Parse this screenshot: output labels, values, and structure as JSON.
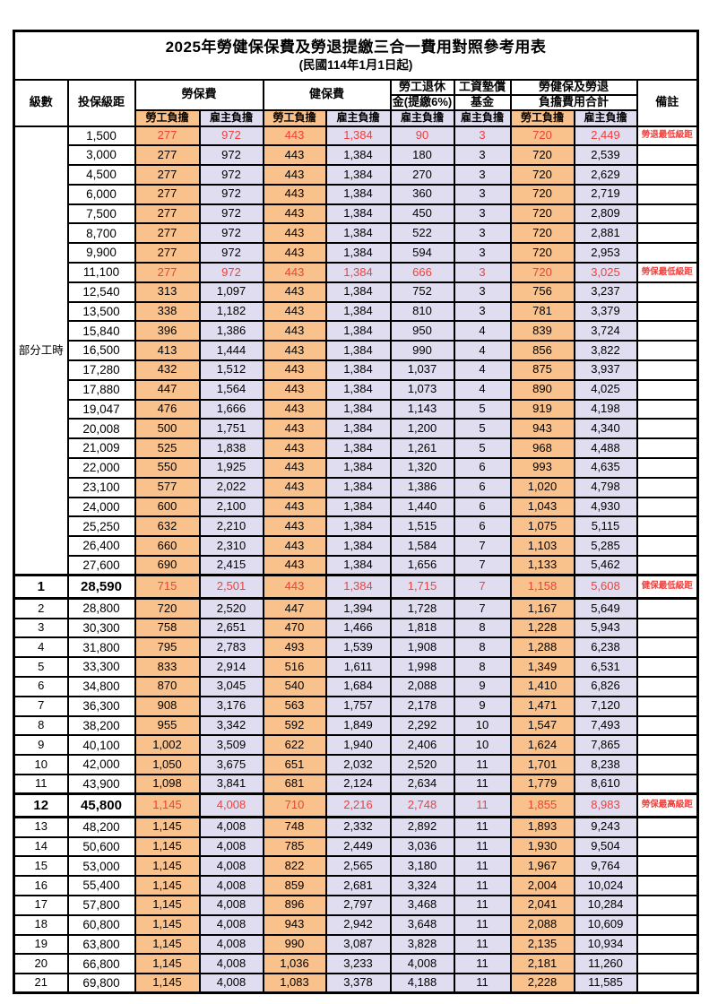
{
  "title": "2025年勞健保保費及勞退提繳三合一費用對照參考用表",
  "subtitle": "(民國114年1月1日起)",
  "colors": {
    "employee_bg": "#f9c18b",
    "employer_bg": "#dfddef",
    "highlight_text": "#f0403c",
    "border": "#000000"
  },
  "header": {
    "level": "級數",
    "bracket": "投保級距",
    "labor_group": "勞保費",
    "health_group": "健保費",
    "pension_line1": "勞工退休",
    "pension_line2": "金(提繳6%)",
    "wage_fund_line1": "工資墊償",
    "wage_fund_line2": "基金",
    "total_line1": "勞健保及勞退",
    "total_line2": "負擔費用合計",
    "remark": "備註",
    "employee": "勞工負擔",
    "employer": "雇主負擔"
  },
  "part_time": {
    "label": "部分工時",
    "rowspan": 23
  },
  "rows": [
    {
      "level": null,
      "bracket": "1,500",
      "fees": [
        "277",
        "972",
        "443",
        "1,384",
        "90",
        "3",
        "720",
        "2,449"
      ],
      "remark": "勞退最低級距",
      "red": true,
      "hl": false
    },
    {
      "level": null,
      "bracket": "3,000",
      "fees": [
        "277",
        "972",
        "443",
        "1,384",
        "180",
        "3",
        "720",
        "2,539"
      ],
      "remark": "",
      "red": false,
      "hl": false
    },
    {
      "level": null,
      "bracket": "4,500",
      "fees": [
        "277",
        "972",
        "443",
        "1,384",
        "270",
        "3",
        "720",
        "2,629"
      ],
      "remark": "",
      "red": false,
      "hl": false
    },
    {
      "level": null,
      "bracket": "6,000",
      "fees": [
        "277",
        "972",
        "443",
        "1,384",
        "360",
        "3",
        "720",
        "2,719"
      ],
      "remark": "",
      "red": false,
      "hl": false
    },
    {
      "level": null,
      "bracket": "7,500",
      "fees": [
        "277",
        "972",
        "443",
        "1,384",
        "450",
        "3",
        "720",
        "2,809"
      ],
      "remark": "",
      "red": false,
      "hl": false
    },
    {
      "level": null,
      "bracket": "8,700",
      "fees": [
        "277",
        "972",
        "443",
        "1,384",
        "522",
        "3",
        "720",
        "2,881"
      ],
      "remark": "",
      "red": false,
      "hl": false
    },
    {
      "level": null,
      "bracket": "9,900",
      "fees": [
        "277",
        "972",
        "443",
        "1,384",
        "594",
        "3",
        "720",
        "2,953"
      ],
      "remark": "",
      "red": false,
      "hl": false
    },
    {
      "level": null,
      "bracket": "11,100",
      "fees": [
        "277",
        "972",
        "443",
        "1,384",
        "666",
        "3",
        "720",
        "3,025"
      ],
      "remark": "勞保最低級距",
      "red": true,
      "hl": false
    },
    {
      "level": null,
      "bracket": "12,540",
      "fees": [
        "313",
        "1,097",
        "443",
        "1,384",
        "752",
        "3",
        "756",
        "3,237"
      ],
      "remark": "",
      "red": false,
      "hl": false
    },
    {
      "level": null,
      "bracket": "13,500",
      "fees": [
        "338",
        "1,182",
        "443",
        "1,384",
        "810",
        "3",
        "781",
        "3,379"
      ],
      "remark": "",
      "red": false,
      "hl": false
    },
    {
      "level": null,
      "bracket": "15,840",
      "fees": [
        "396",
        "1,386",
        "443",
        "1,384",
        "950",
        "4",
        "839",
        "3,724"
      ],
      "remark": "",
      "red": false,
      "hl": false
    },
    {
      "level": null,
      "bracket": "16,500",
      "fees": [
        "413",
        "1,444",
        "443",
        "1,384",
        "990",
        "4",
        "856",
        "3,822"
      ],
      "remark": "",
      "red": false,
      "hl": false
    },
    {
      "level": null,
      "bracket": "17,280",
      "fees": [
        "432",
        "1,512",
        "443",
        "1,384",
        "1,037",
        "4",
        "875",
        "3,937"
      ],
      "remark": "",
      "red": false,
      "hl": false
    },
    {
      "level": null,
      "bracket": "17,880",
      "fees": [
        "447",
        "1,564",
        "443",
        "1,384",
        "1,073",
        "4",
        "890",
        "4,025"
      ],
      "remark": "",
      "red": false,
      "hl": false
    },
    {
      "level": null,
      "bracket": "19,047",
      "fees": [
        "476",
        "1,666",
        "443",
        "1,384",
        "1,143",
        "5",
        "919",
        "4,198"
      ],
      "remark": "",
      "red": false,
      "hl": false
    },
    {
      "level": null,
      "bracket": "20,008",
      "fees": [
        "500",
        "1,751",
        "443",
        "1,384",
        "1,200",
        "5",
        "943",
        "4,340"
      ],
      "remark": "",
      "red": false,
      "hl": false
    },
    {
      "level": null,
      "bracket": "21,009",
      "fees": [
        "525",
        "1,838",
        "443",
        "1,384",
        "1,261",
        "5",
        "968",
        "4,488"
      ],
      "remark": "",
      "red": false,
      "hl": false
    },
    {
      "level": null,
      "bracket": "22,000",
      "fees": [
        "550",
        "1,925",
        "443",
        "1,384",
        "1,320",
        "6",
        "993",
        "4,635"
      ],
      "remark": "",
      "red": false,
      "hl": false
    },
    {
      "level": null,
      "bracket": "23,100",
      "fees": [
        "577",
        "2,022",
        "443",
        "1,384",
        "1,386",
        "6",
        "1,020",
        "4,798"
      ],
      "remark": "",
      "red": false,
      "hl": false
    },
    {
      "level": null,
      "bracket": "24,000",
      "fees": [
        "600",
        "2,100",
        "443",
        "1,384",
        "1,440",
        "6",
        "1,043",
        "4,930"
      ],
      "remark": "",
      "red": false,
      "hl": false
    },
    {
      "level": null,
      "bracket": "25,250",
      "fees": [
        "632",
        "2,210",
        "443",
        "1,384",
        "1,515",
        "6",
        "1,075",
        "5,115"
      ],
      "remark": "",
      "red": false,
      "hl": false
    },
    {
      "level": null,
      "bracket": "26,400",
      "fees": [
        "660",
        "2,310",
        "443",
        "1,384",
        "1,584",
        "7",
        "1,103",
        "5,285"
      ],
      "remark": "",
      "red": false,
      "hl": false
    },
    {
      "level": null,
      "bracket": "27,600",
      "fees": [
        "690",
        "2,415",
        "443",
        "1,384",
        "1,656",
        "7",
        "1,133",
        "5,462"
      ],
      "remark": "",
      "red": false,
      "hl": false
    },
    {
      "level": "1",
      "bracket": "28,590",
      "fees": [
        "715",
        "2,501",
        "443",
        "1,384",
        "1,715",
        "7",
        "1,158",
        "5,608"
      ],
      "remark": "健保最低級距",
      "red": true,
      "hl": true
    },
    {
      "level": "2",
      "bracket": "28,800",
      "fees": [
        "720",
        "2,520",
        "447",
        "1,394",
        "1,728",
        "7",
        "1,167",
        "5,649"
      ],
      "remark": "",
      "red": false,
      "hl": false
    },
    {
      "level": "3",
      "bracket": "30,300",
      "fees": [
        "758",
        "2,651",
        "470",
        "1,466",
        "1,818",
        "8",
        "1,228",
        "5,943"
      ],
      "remark": "",
      "red": false,
      "hl": false
    },
    {
      "level": "4",
      "bracket": "31,800",
      "fees": [
        "795",
        "2,783",
        "493",
        "1,539",
        "1,908",
        "8",
        "1,288",
        "6,238"
      ],
      "remark": "",
      "red": false,
      "hl": false
    },
    {
      "level": "5",
      "bracket": "33,300",
      "fees": [
        "833",
        "2,914",
        "516",
        "1,611",
        "1,998",
        "8",
        "1,349",
        "6,531"
      ],
      "remark": "",
      "red": false,
      "hl": false
    },
    {
      "level": "6",
      "bracket": "34,800",
      "fees": [
        "870",
        "3,045",
        "540",
        "1,684",
        "2,088",
        "9",
        "1,410",
        "6,826"
      ],
      "remark": "",
      "red": false,
      "hl": false
    },
    {
      "level": "7",
      "bracket": "36,300",
      "fees": [
        "908",
        "3,176",
        "563",
        "1,757",
        "2,178",
        "9",
        "1,471",
        "7,120"
      ],
      "remark": "",
      "red": false,
      "hl": false
    },
    {
      "level": "8",
      "bracket": "38,200",
      "fees": [
        "955",
        "3,342",
        "592",
        "1,849",
        "2,292",
        "10",
        "1,547",
        "7,493"
      ],
      "remark": "",
      "red": false,
      "hl": false
    },
    {
      "level": "9",
      "bracket": "40,100",
      "fees": [
        "1,002",
        "3,509",
        "622",
        "1,940",
        "2,406",
        "10",
        "1,624",
        "7,865"
      ],
      "remark": "",
      "red": false,
      "hl": false
    },
    {
      "level": "10",
      "bracket": "42,000",
      "fees": [
        "1,050",
        "3,675",
        "651",
        "2,032",
        "2,520",
        "11",
        "1,701",
        "8,238"
      ],
      "remark": "",
      "red": false,
      "hl": false
    },
    {
      "level": "11",
      "bracket": "43,900",
      "fees": [
        "1,098",
        "3,841",
        "681",
        "2,124",
        "2,634",
        "11",
        "1,779",
        "8,610"
      ],
      "remark": "",
      "red": false,
      "hl": false
    },
    {
      "level": "12",
      "bracket": "45,800",
      "fees": [
        "1,145",
        "4,008",
        "710",
        "2,216",
        "2,748",
        "11",
        "1,855",
        "8,983"
      ],
      "remark": "勞保最高級距",
      "red": true,
      "hl": true
    },
    {
      "level": "13",
      "bracket": "48,200",
      "fees": [
        "1,145",
        "4,008",
        "748",
        "2,332",
        "2,892",
        "11",
        "1,893",
        "9,243"
      ],
      "remark": "",
      "red": false,
      "hl": false
    },
    {
      "level": "14",
      "bracket": "50,600",
      "fees": [
        "1,145",
        "4,008",
        "785",
        "2,449",
        "3,036",
        "11",
        "1,930",
        "9,504"
      ],
      "remark": "",
      "red": false,
      "hl": false
    },
    {
      "level": "15",
      "bracket": "53,000",
      "fees": [
        "1,145",
        "4,008",
        "822",
        "2,565",
        "3,180",
        "11",
        "1,967",
        "9,764"
      ],
      "remark": "",
      "red": false,
      "hl": false
    },
    {
      "level": "16",
      "bracket": "55,400",
      "fees": [
        "1,145",
        "4,008",
        "859",
        "2,681",
        "3,324",
        "11",
        "2,004",
        "10,024"
      ],
      "remark": "",
      "red": false,
      "hl": false
    },
    {
      "level": "17",
      "bracket": "57,800",
      "fees": [
        "1,145",
        "4,008",
        "896",
        "2,797",
        "3,468",
        "11",
        "2,041",
        "10,284"
      ],
      "remark": "",
      "red": false,
      "hl": false
    },
    {
      "level": "18",
      "bracket": "60,800",
      "fees": [
        "1,145",
        "4,008",
        "943",
        "2,942",
        "3,648",
        "11",
        "2,088",
        "10,609"
      ],
      "remark": "",
      "red": false,
      "hl": false
    },
    {
      "level": "19",
      "bracket": "63,800",
      "fees": [
        "1,145",
        "4,008",
        "990",
        "3,087",
        "3,828",
        "11",
        "2,135",
        "10,934"
      ],
      "remark": "",
      "red": false,
      "hl": false
    },
    {
      "level": "20",
      "bracket": "66,800",
      "fees": [
        "1,145",
        "4,008",
        "1,036",
        "3,233",
        "4,008",
        "11",
        "2,181",
        "11,260"
      ],
      "remark": "",
      "red": false,
      "hl": false
    },
    {
      "level": "21",
      "bracket": "69,800",
      "fees": [
        "1,145",
        "4,008",
        "1,083",
        "3,378",
        "4,188",
        "11",
        "2,228",
        "11,585"
      ],
      "remark": "",
      "red": false,
      "hl": false
    }
  ]
}
